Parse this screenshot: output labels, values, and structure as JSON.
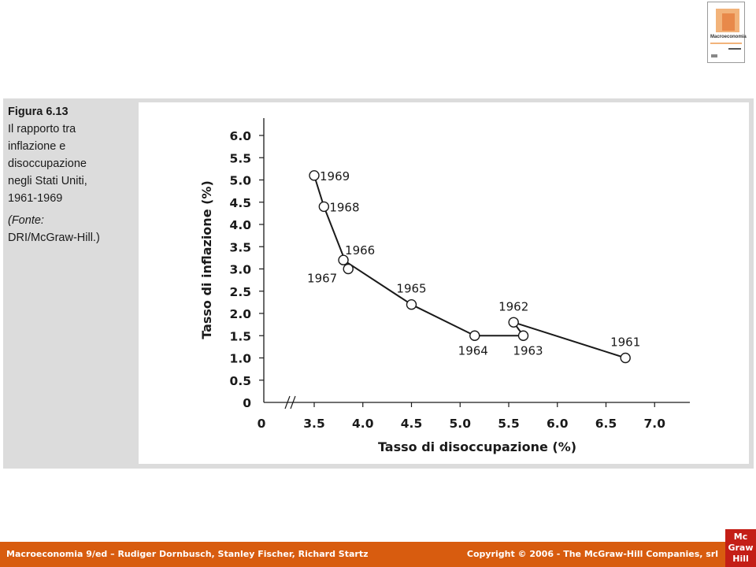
{
  "caption": {
    "figure_number": "Figura 6.13",
    "title_lines": [
      "Il rapporto tra",
      "inflazione e",
      "disoccupazione",
      "negli Stati Uniti,",
      "1961-1969"
    ],
    "source_lines": [
      "(Fonte:",
      "DRI/McGraw-Hill.)"
    ]
  },
  "book_cover": {
    "title": "Macroeconomia"
  },
  "chart_data": {
    "type": "line",
    "title": "",
    "xlabel": "Tasso di disoccupazione (%)",
    "ylabel": "Tasso di inflazione (%)",
    "xlim": [
      3.0,
      7.4
    ],
    "ylim": [
      0,
      6.5
    ],
    "x_axis_break": true,
    "grid": false,
    "legend": "none",
    "x_ticks": [
      {
        "value": 3.5,
        "label": "3.5"
      },
      {
        "value": 4.0,
        "label": "4.0"
      },
      {
        "value": 4.5,
        "label": "4.5"
      },
      {
        "value": 5.0,
        "label": "5.0"
      },
      {
        "value": 5.5,
        "label": "5.5"
      },
      {
        "value": 6.0,
        "label": "6.0"
      },
      {
        "value": 6.5,
        "label": "6.5"
      },
      {
        "value": 7.0,
        "label": "7.0"
      }
    ],
    "x_origin_label": "0",
    "y_ticks": [
      {
        "value": 0,
        "label": "0"
      },
      {
        "value": 0.5,
        "label": "0.5"
      },
      {
        "value": 1.0,
        "label": "1.0"
      },
      {
        "value": 1.5,
        "label": "1.5"
      },
      {
        "value": 2.0,
        "label": "2.0"
      },
      {
        "value": 2.5,
        "label": "2.5"
      },
      {
        "value": 3.0,
        "label": "3.0"
      },
      {
        "value": 3.5,
        "label": "3.5"
      },
      {
        "value": 4.0,
        "label": "4.0"
      },
      {
        "value": 4.5,
        "label": "4.5"
      },
      {
        "value": 5.0,
        "label": "5.0"
      },
      {
        "value": 5.5,
        "label": "5.5"
      },
      {
        "value": 6.0,
        "label": "6.0"
      }
    ],
    "points": [
      {
        "label": "1961",
        "x": 6.7,
        "y": 1.0,
        "label_pos": "above"
      },
      {
        "label": "1962",
        "x": 5.55,
        "y": 1.8,
        "label_pos": "above"
      },
      {
        "label": "1963",
        "x": 5.65,
        "y": 1.5,
        "label_pos": "below"
      },
      {
        "label": "1964",
        "x": 5.15,
        "y": 1.5,
        "label_pos": "below-left"
      },
      {
        "label": "1965",
        "x": 4.5,
        "y": 2.2,
        "label_pos": "above"
      },
      {
        "label": "1966",
        "x": 3.8,
        "y": 3.2,
        "label_pos": "right-up"
      },
      {
        "label": "1967",
        "x": 3.85,
        "y": 3.0,
        "label_pos": "below-left"
      },
      {
        "label": "1968",
        "x": 3.6,
        "y": 4.4,
        "label_pos": "right"
      },
      {
        "label": "1969",
        "x": 3.5,
        "y": 5.1,
        "label_pos": "right"
      }
    ]
  },
  "footer": {
    "left_text": "Macroeconomia 9/ed – Rudiger Dornbusch, Stanley Fischer, Richard Startz",
    "right_text": "Copyright © 2006 - The McGraw-Hill Companies, srl",
    "logo_lines": [
      "Mc",
      "Graw",
      "Hill"
    ]
  }
}
